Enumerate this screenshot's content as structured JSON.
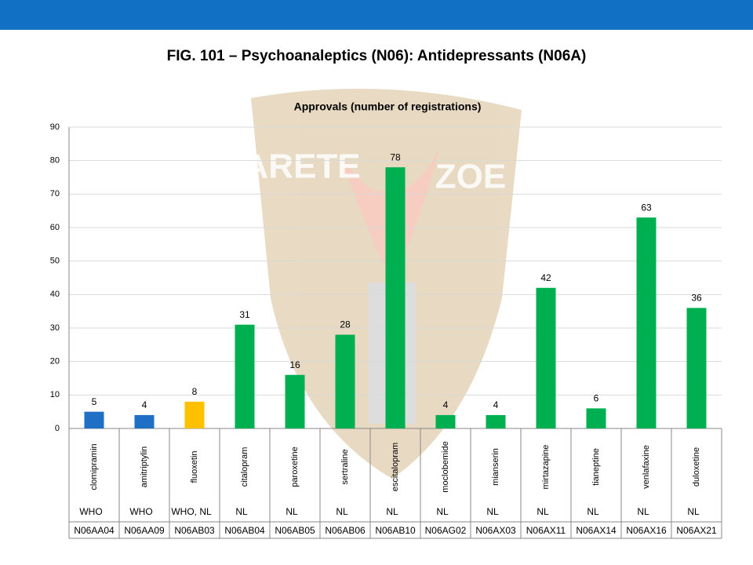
{
  "chart_data": {
    "type": "bar",
    "title": "FIG. 101 – Psychoanaleptics (N06): Antidepressants (N06A)",
    "subtitle": "Approvals (number of registrations)",
    "watermark": [
      "ARETE",
      "ZOE"
    ],
    "categories": [
      "clomipramin",
      "amitriptylin",
      "fluoxetin",
      "citalopram",
      "paroxetine",
      "sertraline",
      "escitalopram",
      "moclobemide",
      "mianserin",
      "mirtazapine",
      "tianeptine",
      "venlafaxine",
      "duloxetine"
    ],
    "values": [
      5,
      4,
      8,
      31,
      16,
      28,
      78,
      4,
      4,
      42,
      6,
      63,
      36
    ],
    "colors": [
      "#1f6fc5",
      "#1f6fc5",
      "#ffc000",
      "#00b050",
      "#00b050",
      "#00b050",
      "#00b050",
      "#00b050",
      "#00b050",
      "#00b050",
      "#00b050",
      "#00b050",
      "#00b050"
    ],
    "sources": [
      "WHO",
      "WHO",
      "WHO, NL",
      "NL",
      "NL",
      "NL",
      "NL",
      "NL",
      "NL",
      "NL",
      "NL",
      "NL",
      "NL"
    ],
    "codes": [
      "N06AA04",
      "N06AA09",
      "N06AB03",
      "N06AB04",
      "N06AB05",
      "N06AB06",
      "N06AB10",
      "N06AG02",
      "N06AX03",
      "N06AX11",
      "N06AX14",
      "N06AX16",
      "N06AX21"
    ],
    "ylim": [
      0,
      90
    ],
    "yticks": [
      0,
      10,
      20,
      30,
      40,
      50,
      60,
      70,
      80,
      90
    ],
    "grid": true
  }
}
